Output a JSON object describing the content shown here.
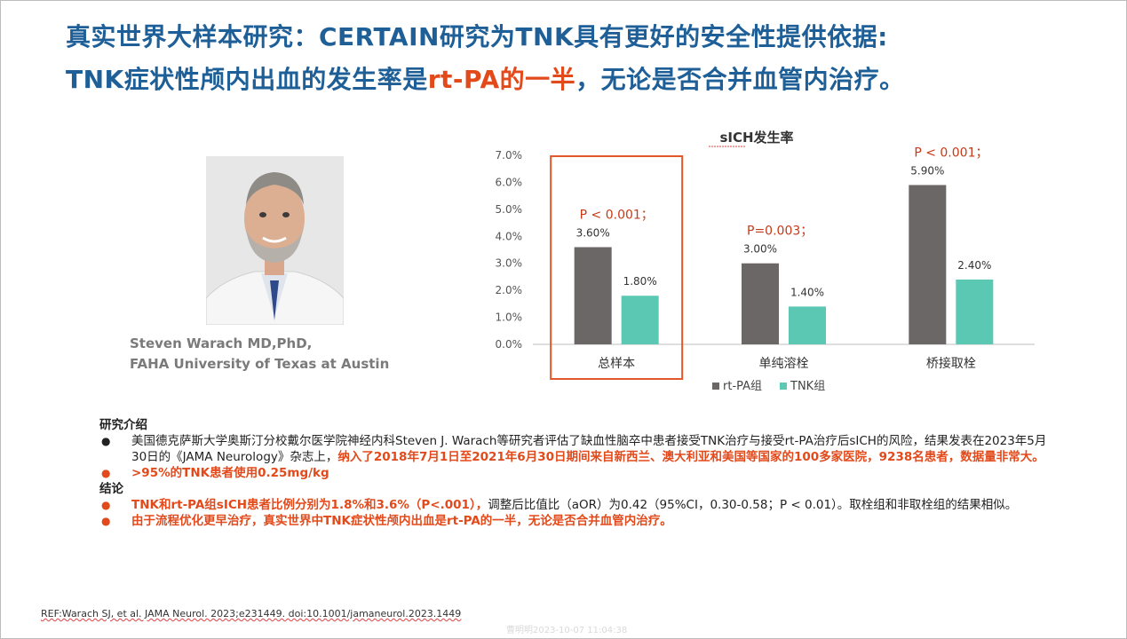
{
  "title": {
    "line1": "真实世界大样本研究：CERTAIN研究为TNK具有更好的安全性提供依据:",
    "line2_a": "TNK症状性颅内出血的发生率是",
    "line2_b": "rt-PA的一半",
    "line2_c": "，无论是否合并血管内治疗。"
  },
  "caption": {
    "line1": "Steven Warach MD,PhD,",
    "line2": "FAHA  University of Texas at Austin"
  },
  "chart_data": {
    "type": "bar",
    "title": "sICH发生率",
    "categories": [
      "总样本",
      "单纯溶栓",
      "桥接取栓"
    ],
    "series": [
      {
        "name": "rt-PA组",
        "values": [
          3.6,
          3.0,
          5.9
        ],
        "labels": [
          "3.60%",
          "3.00%",
          "5.90%"
        ],
        "color": "#6b6767"
      },
      {
        "name": "TNK组",
        "values": [
          1.8,
          1.4,
          2.4
        ],
        "labels": [
          "1.80%",
          "1.40%",
          "2.40%"
        ],
        "color": "#5bc8b4"
      }
    ],
    "annotations": [
      "P < 0.001；",
      "P=0.003；",
      "P < 0.001；"
    ],
    "ylim": [
      0,
      7
    ],
    "yticks": [
      "0.0%",
      "1.0%",
      "2.0%",
      "3.0%",
      "4.0%",
      "5.0%",
      "6.0%",
      "7.0%"
    ],
    "highlight_category": "总样本",
    "legend": "bottom",
    "grid": false
  },
  "body": {
    "intro_head": "研究介绍",
    "intro_text_1": "美国德克萨斯大学奥斯汀分校戴尔医学院神经内科Steven J. Warach等研究者评估了缺血性脑卒中患者接受TNK治疗与接受rt-PA治疗后sICH的风险，结果发表在2023年5月30日的《JAMA Neurology》杂志上，",
    "intro_text_red": "纳入了2018年7月1日至2021年6月30日期间来自新西兰、澳大利亚和美国等国家的100多家医院，9238名患者，数据量非常大。",
    "intro_bullet_2": ">95%的TNK患者使用0.25mg/kg",
    "conclusion_head": "结论",
    "conclusion_red_1": "TNK和rt-PA组sICH患者比例分别为1.8%和3.6%（P<.001），",
    "conclusion_text_1": "调整后比值比（aOR）为0.42（95%CI，0.30-0.58；P < 0.01）。取栓组和非取栓组的结果相似。",
    "conclusion_bullet_2": "由于流程优化更早治疗，真实世界中TNK症状性颅内出血是rt-PA的一半，无论是否合并血管内治疗。",
    "bullet_glyph": "●"
  },
  "reference": "REF:Warach SJ, et al. JAMA Neurol. 2023;e231449. doi:10.1001/jamaneurol.2023.1449",
  "watermark": "曹明明2023-10-07 11:04:38",
  "colors": {
    "blue": "#1f5f97",
    "teal": "#2aa6a0",
    "orange": "#e24a1b",
    "rtpa": "#6b6767",
    "tnk": "#5bc8b4"
  }
}
